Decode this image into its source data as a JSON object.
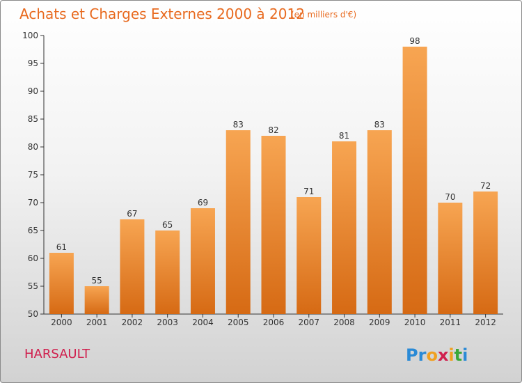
{
  "header": {
    "title": "Achats et Charges Externes 2000 à 2012",
    "unit": "(en milliers d'€)"
  },
  "footer": {
    "place": "HARSAULT",
    "logo": {
      "text": "Proxiti",
      "letters": [
        {
          "char": "P",
          "color": "#2a8ad6"
        },
        {
          "char": "r",
          "color": "#2a8ad6"
        },
        {
          "char": "o",
          "color": "#f0a020"
        },
        {
          "char": "x",
          "color": "#d0204e"
        },
        {
          "char": "i",
          "color": "#f0a020"
        },
        {
          "char": "t",
          "color": "#3aa83a"
        },
        {
          "char": "i",
          "color": "#2a8ad6"
        }
      ]
    }
  },
  "colors": {
    "title": "#e86a1f",
    "place": "#d0204e",
    "bar_top": "#f7a552",
    "bar_bottom": "#d66a14",
    "axis": "#333333"
  },
  "chart_data": {
    "type": "bar",
    "title": "Achats et Charges Externes 2000 à 2012",
    "subtitle": "(en milliers d'€)",
    "xlabel": "",
    "ylabel": "",
    "categories": [
      "2000",
      "2001",
      "2002",
      "2003",
      "2004",
      "2005",
      "2006",
      "2007",
      "2008",
      "2009",
      "2010",
      "2011",
      "2012"
    ],
    "values": [
      61,
      55,
      67,
      65,
      69,
      83,
      82,
      71,
      81,
      83,
      98,
      70,
      72
    ],
    "ylim": [
      50,
      100
    ],
    "yticks": [
      50,
      55,
      60,
      65,
      70,
      75,
      80,
      85,
      90,
      95,
      100
    ],
    "grid": false,
    "legend": "none"
  }
}
